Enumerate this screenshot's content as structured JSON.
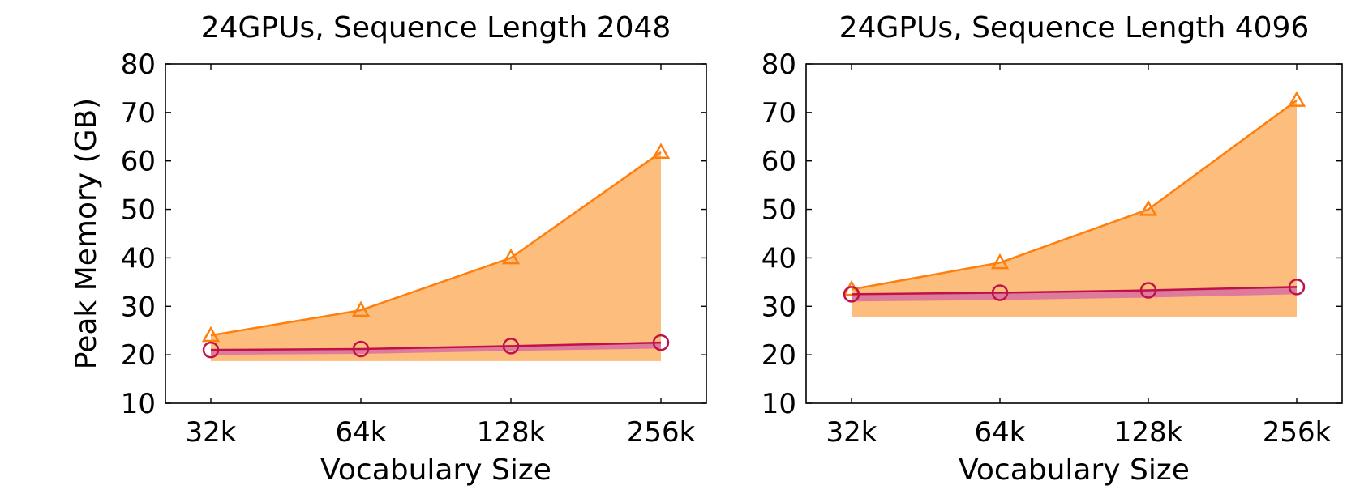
{
  "chart_data": [
    {
      "type": "line",
      "title": "24GPUs, Sequence Length 2048",
      "xlabel": "Vocabulary Size",
      "ylabel": "Peak Memory (GB)",
      "categories": [
        "32k",
        "64k",
        "128k",
        "256k"
      ],
      "ylim": [
        10,
        80
      ],
      "yticks": [
        10,
        20,
        30,
        40,
        50,
        60,
        70,
        80
      ],
      "grid": false,
      "series": [
        {
          "marker": "triangle",
          "color": "#ff7f0e",
          "fill_color": "#fdbd7d",
          "values": [
            24.0,
            29.2,
            40.0,
            61.8
          ],
          "band_base": 18.7
        },
        {
          "marker": "circle",
          "color": "#c0124a",
          "fill_color": "#de7a9c",
          "values": [
            21.0,
            21.2,
            21.8,
            22.5
          ],
          "band_lower": [
            20.0,
            20.2,
            20.8,
            21.3
          ]
        }
      ]
    },
    {
      "type": "line",
      "title": "24GPUs, Sequence Length 4096",
      "xlabel": "Vocabulary Size",
      "ylabel": "",
      "categories": [
        "32k",
        "64k",
        "128k",
        "256k"
      ],
      "ylim": [
        10,
        80
      ],
      "yticks": [
        10,
        20,
        30,
        40,
        50,
        60,
        70,
        80
      ],
      "grid": false,
      "series": [
        {
          "marker": "triangle",
          "color": "#ff7f0e",
          "fill_color": "#fdbd7d",
          "values": [
            33.5,
            39.0,
            50.0,
            72.5
          ],
          "band_base": 27.8
        },
        {
          "marker": "circle",
          "color": "#c0124a",
          "fill_color": "#de7a9c",
          "values": [
            32.5,
            32.8,
            33.3,
            34.0
          ],
          "band_lower": [
            31.0,
            31.3,
            31.8,
            32.5
          ]
        }
      ]
    }
  ]
}
